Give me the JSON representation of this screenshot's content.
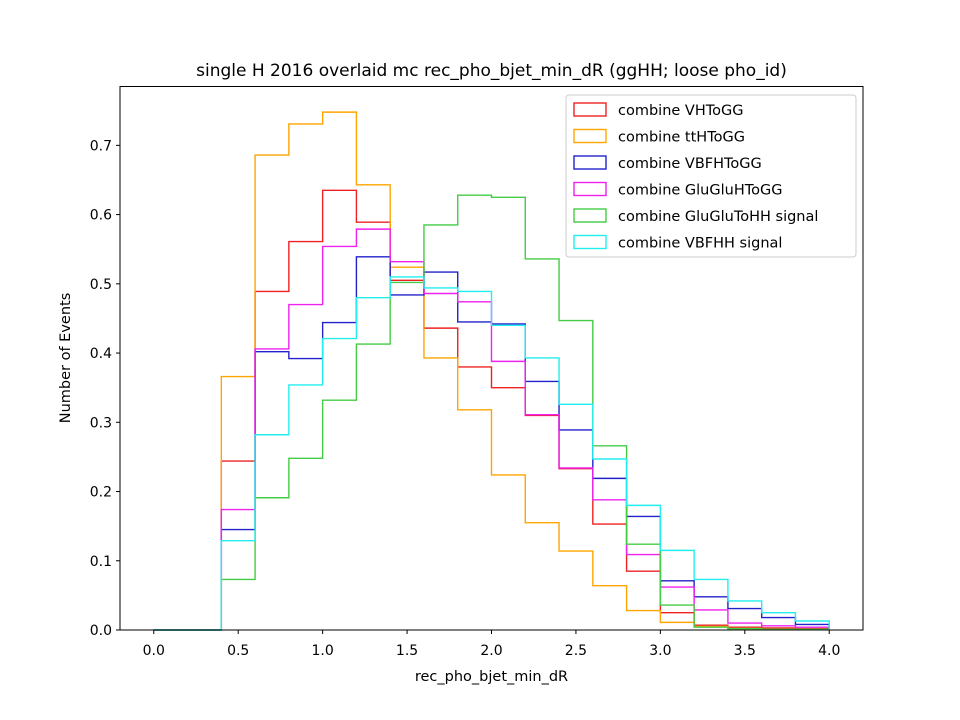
{
  "chart_data": {
    "type": "histogram-step",
    "title": "single H 2016 overlaid mc rec_pho_bjet_min_dR (ggHH; loose pho_id)",
    "xlabel": "rec_pho_bjet_min_dR",
    "ylabel": "Number of Events",
    "xlim": [
      -0.2,
      4.2
    ],
    "ylim": [
      0.0,
      0.785
    ],
    "xticks": [
      0.0,
      0.5,
      1.0,
      1.5,
      2.0,
      2.5,
      3.0,
      3.5,
      4.0
    ],
    "xtick_labels": [
      "0.0",
      "0.5",
      "1.0",
      "1.5",
      "2.0",
      "2.5",
      "3.0",
      "3.5",
      "4.0"
    ],
    "yticks": [
      0.0,
      0.1,
      0.2,
      0.3,
      0.4,
      0.5,
      0.6,
      0.7
    ],
    "ytick_labels": [
      "0.0",
      "0.1",
      "0.2",
      "0.3",
      "0.4",
      "0.5",
      "0.6",
      "0.7"
    ],
    "legend_position": "top-right",
    "bin_edges": [
      0.0,
      0.2,
      0.4,
      0.6,
      0.8,
      1.0,
      1.2,
      1.4,
      1.6,
      1.8,
      2.0,
      2.2,
      2.4,
      2.6,
      2.8,
      3.0,
      3.2,
      3.4,
      3.6,
      3.8,
      4.0
    ],
    "series": [
      {
        "name": "combine VHToGG",
        "color": "#ee2222",
        "values": [
          0.0,
          0.0,
          0.244,
          0.489,
          0.561,
          0.635,
          0.589,
          0.505,
          0.436,
          0.38,
          0.35,
          0.31,
          0.233,
          0.153,
          0.085,
          0.025,
          0.007,
          0.004,
          0.003,
          0.002
        ]
      },
      {
        "name": "combine ttHToGG",
        "color": "#ffa500",
        "values": [
          0.0,
          0.0,
          0.366,
          0.686,
          0.731,
          0.748,
          0.643,
          0.524,
          0.393,
          0.318,
          0.224,
          0.155,
          0.114,
          0.064,
          0.028,
          0.011,
          0.005,
          0.002,
          0.001,
          0.001
        ]
      },
      {
        "name": "combine VBFHToGG",
        "color": "#2222cc",
        "values": [
          0.0,
          0.0,
          0.145,
          0.402,
          0.392,
          0.444,
          0.539,
          0.484,
          0.517,
          0.445,
          0.442,
          0.359,
          0.289,
          0.219,
          0.164,
          0.071,
          0.048,
          0.031,
          0.018,
          0.008
        ]
      },
      {
        "name": "combine GluGluHToGG",
        "color": "#ee22ee",
        "values": [
          0.0,
          0.0,
          0.174,
          0.406,
          0.47,
          0.554,
          0.579,
          0.532,
          0.486,
          0.474,
          0.388,
          0.311,
          0.234,
          0.188,
          0.109,
          0.062,
          0.029,
          0.01,
          0.006,
          0.004
        ]
      },
      {
        "name": "combine GluGluToHH signal",
        "color": "#44cc44",
        "values": [
          0.0,
          0.0,
          0.073,
          0.191,
          0.248,
          0.332,
          0.413,
          0.502,
          0.585,
          0.628,
          0.625,
          0.536,
          0.447,
          0.266,
          0.124,
          0.036,
          0.004,
          0.002,
          0.001,
          0.001
        ]
      },
      {
        "name": "combine VBFHH signal",
        "color": "#22eeee",
        "values": [
          0.0,
          0.0,
          0.129,
          0.282,
          0.354,
          0.421,
          0.48,
          0.51,
          0.494,
          0.489,
          0.44,
          0.393,
          0.326,
          0.247,
          0.18,
          0.115,
          0.073,
          0.042,
          0.025,
          0.013
        ]
      }
    ]
  }
}
